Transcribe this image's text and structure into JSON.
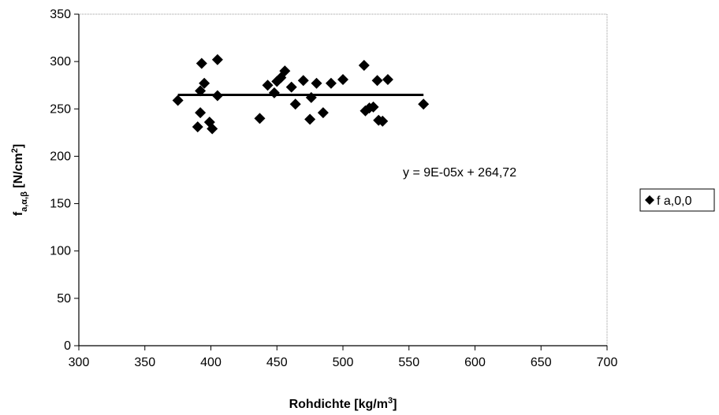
{
  "chart_data": {
    "type": "scatter",
    "title": "",
    "xlabel": "Rohdichte [kg/m",
    "xlabel_sup": "3",
    "xlabel_end": "]",
    "ylabel": "f",
    "ylabel_sub": "a,α,β",
    "ylabel_mid": " [N/cm",
    "ylabel_sup": "2",
    "ylabel_end": "]",
    "xlim": [
      300,
      700
    ],
    "ylim": [
      0,
      350
    ],
    "x_ticks": [
      300,
      350,
      400,
      450,
      500,
      550,
      600,
      650,
      700
    ],
    "y_ticks": [
      0,
      50,
      100,
      150,
      200,
      250,
      300,
      350
    ],
    "grid": false,
    "legend_position": "right",
    "series": [
      {
        "name": "f a,0,0",
        "marker": "diamond",
        "color": "#000000",
        "points": [
          [
            375,
            259
          ],
          [
            390,
            231
          ],
          [
            392,
            246
          ],
          [
            392,
            269
          ],
          [
            393,
            298
          ],
          [
            395,
            277
          ],
          [
            399,
            236
          ],
          [
            401,
            229
          ],
          [
            405,
            264
          ],
          [
            405,
            302
          ],
          [
            437,
            240
          ],
          [
            443,
            275
          ],
          [
            448,
            267
          ],
          [
            450,
            279
          ],
          [
            453,
            283
          ],
          [
            456,
            290
          ],
          [
            461,
            273
          ],
          [
            464,
            255
          ],
          [
            470,
            280
          ],
          [
            475,
            239
          ],
          [
            476,
            262
          ],
          [
            480,
            277
          ],
          [
            485,
            246
          ],
          [
            491,
            277
          ],
          [
            500,
            281
          ],
          [
            516,
            296
          ],
          [
            517,
            248
          ],
          [
            520,
            251
          ],
          [
            523,
            252
          ],
          [
            526,
            280
          ],
          [
            527,
            238
          ],
          [
            530,
            237
          ],
          [
            534,
            281
          ],
          [
            561,
            255
          ]
        ]
      }
    ],
    "trendline": {
      "slope": 9e-05,
      "intercept": 264.72,
      "x_range": [
        375,
        561
      ],
      "equation_label": "y = 9E-05x + 264,72"
    }
  }
}
